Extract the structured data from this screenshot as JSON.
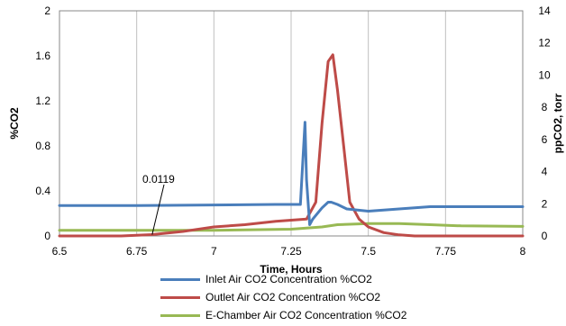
{
  "chart_data": {
    "type": "line",
    "xlabel": "Time, Hours",
    "ylabel_left": "%CO2",
    "ylabel_right": "ppCO2, torr",
    "xlim": [
      6.5,
      8
    ],
    "ylim_left": [
      0,
      2
    ],
    "ylim_right": [
      0,
      14
    ],
    "x_ticks": [
      "6.5",
      "6.75",
      "7",
      "7.25",
      "7.5",
      "7.75",
      "8"
    ],
    "y_ticks_left": [
      "0",
      "0.4",
      "0.8",
      "1.2",
      "1.6",
      "2"
    ],
    "y_ticks_right": [
      "0",
      "2",
      "4",
      "6",
      "8",
      "10",
      "12",
      "14"
    ],
    "grid": "vertical",
    "legend_position": "bottom",
    "annotation": {
      "text": "0.0119",
      "x": 6.8,
      "y": 0.0119
    },
    "series": [
      {
        "name": "Inlet Air CO2 Concentration %CO2",
        "color": "#4a7ebb",
        "x": [
          6.5,
          6.75,
          7.0,
          7.2,
          7.28,
          7.295,
          7.3,
          7.31,
          7.32,
          7.35,
          7.37,
          7.38,
          7.4,
          7.43,
          7.5,
          7.6,
          7.7,
          7.8,
          8.0
        ],
        "y": [
          0.27,
          0.27,
          0.275,
          0.28,
          0.28,
          1.01,
          0.5,
          0.1,
          0.15,
          0.25,
          0.3,
          0.3,
          0.28,
          0.24,
          0.22,
          0.24,
          0.26,
          0.26,
          0.26
        ]
      },
      {
        "name": "Outlet Air CO2 Concentration %CO2",
        "color": "#be4b48",
        "x": [
          6.5,
          6.7,
          6.8,
          6.9,
          7.0,
          7.1,
          7.2,
          7.3,
          7.33,
          7.35,
          7.37,
          7.385,
          7.4,
          7.42,
          7.44,
          7.47,
          7.5,
          7.55,
          7.6,
          7.65,
          8.0
        ],
        "y": [
          0.0,
          0.0,
          0.0119,
          0.04,
          0.08,
          0.1,
          0.13,
          0.15,
          0.3,
          1.0,
          1.55,
          1.61,
          1.3,
          0.8,
          0.3,
          0.15,
          0.08,
          0.03,
          0.01,
          0.0,
          0.0
        ]
      },
      {
        "name": "E-Chamber Air CO2 Concentration %CO2",
        "color": "#98b954",
        "x": [
          6.5,
          6.75,
          7.0,
          7.25,
          7.35,
          7.4,
          7.5,
          7.6,
          7.7,
          7.8,
          8.0
        ],
        "y": [
          0.05,
          0.05,
          0.05,
          0.06,
          0.08,
          0.1,
          0.11,
          0.11,
          0.1,
          0.09,
          0.085
        ]
      }
    ]
  }
}
